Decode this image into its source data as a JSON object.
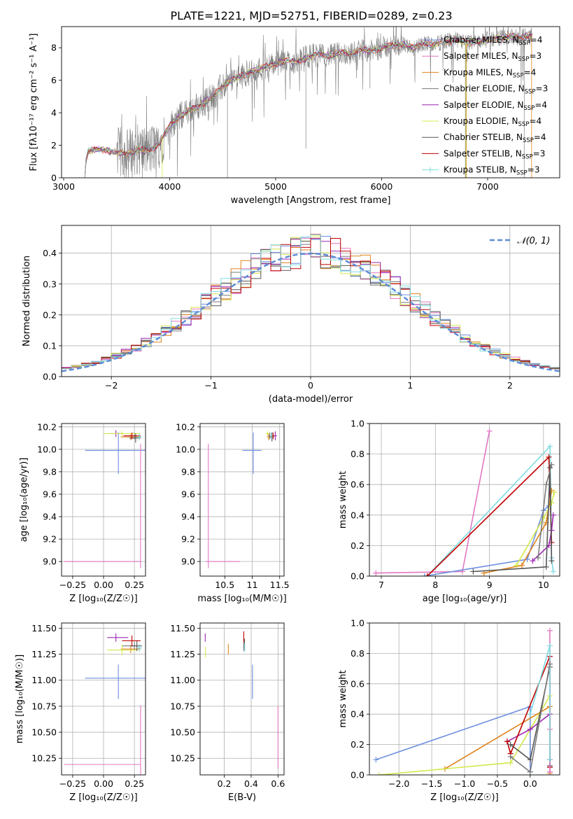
{
  "figure": {
    "title": "PLATE=1221, MJD=52751, FIBERID=0289, z=0.23"
  },
  "colors": {
    "chabrier_miles": "#6d8fe0",
    "salpeter_miles": "#e377c2",
    "kroupa_miles": "#e0821c",
    "chabrier_elodie": "#7a7a7a",
    "salpeter_elodie": "#9c27b0",
    "kroupa_elodie": "#d4e84c",
    "chabrier_stelib": "#555555",
    "salpeter_stelib": "#c00000",
    "kroupa_stelib": "#80dbe0",
    "gaussian": "#5b8bd6",
    "grid": "#b0b0b0",
    "data": "#808080"
  },
  "chart_data": [
    {
      "id": "spectrum",
      "type": "line",
      "xlabel": "wavelength [Angstrom, rest frame]",
      "ylabel": "Flux [fλ10⁻¹⁷ erg cm⁻² s⁻¹ A⁻¹]",
      "xlim": [
        2980,
        7680
      ],
      "ylim": [
        0,
        9.3
      ],
      "xticks": [
        3000,
        4000,
        5000,
        6000,
        7000
      ],
      "yticks": [
        0,
        2,
        4,
        6,
        8
      ],
      "grid": false,
      "legend_position": "top-right",
      "continuum": {
        "x": [
          3200,
          3210,
          3230,
          3300,
          3400,
          3500,
          3600,
          3700,
          3800,
          3900,
          4000,
          4100,
          4200,
          4300,
          4400,
          4500,
          4600,
          4700,
          4800,
          4900,
          5000,
          5100,
          5200,
          5300,
          5400,
          5500,
          5600,
          5700,
          5800,
          5900,
          6000,
          6100,
          6200,
          6300,
          6400,
          6500,
          6600,
          6700,
          6800,
          6900,
          7000,
          7100,
          7200,
          7300,
          7400
        ],
        "y": [
          0,
          1.0,
          1.6,
          1.75,
          1.7,
          1.55,
          1.5,
          1.75,
          1.6,
          2.1,
          3.2,
          3.8,
          4.2,
          4.5,
          5.0,
          5.6,
          6.1,
          6.3,
          6.6,
          6.8,
          7.0,
          7.2,
          7.1,
          7.4,
          7.6,
          7.5,
          7.7,
          7.6,
          7.9,
          7.8,
          8.0,
          8.1,
          8.2,
          8.0,
          8.3,
          8.2,
          8.4,
          8.5,
          8.3,
          8.4,
          8.5,
          8.6,
          8.7,
          8.6,
          8.8
        ]
      },
      "legend": [
        {
          "label": "Chabrier MILES, N",
          "sub": "SSP",
          "tail": "=4",
          "color_key": "chabrier_miles"
        },
        {
          "label": "Salpeter MILES, N",
          "sub": "SSP",
          "tail": "=3",
          "color_key": "salpeter_miles"
        },
        {
          "label": "Kroupa MILES, N",
          "sub": "SSP",
          "tail": "=4",
          "color_key": "kroupa_miles"
        },
        {
          "label": "Chabrier ELODIE, N",
          "sub": "SSP",
          "tail": "=3",
          "color_key": "chabrier_elodie"
        },
        {
          "label": "Salpeter ELODIE, N",
          "sub": "SSP",
          "tail": "=4",
          "color_key": "salpeter_elodie"
        },
        {
          "label": "Kroupa ELODIE, N",
          "sub": "SSP",
          "tail": "=4",
          "color_key": "kroupa_elodie"
        },
        {
          "label": "Chabrier STELIB, N",
          "sub": "SSP",
          "tail": "=4",
          "color_key": "chabrier_stelib"
        },
        {
          "label": "Salpeter STELIB, N",
          "sub": "SSP",
          "tail": "=3",
          "color_key": "salpeter_stelib"
        },
        {
          "label": "Kroupa STELIB, N",
          "sub": "SSP",
          "tail": "=3",
          "color_key": "kroupa_stelib"
        }
      ]
    },
    {
      "id": "residuals",
      "type": "line",
      "xlabel": "(data-model)/error",
      "ylabel": "Normed distribution",
      "xlim": [
        -2.5,
        2.5
      ],
      "ylim": [
        0,
        0.49
      ],
      "xticks": [
        -2,
        -1,
        0,
        1,
        2
      ],
      "yticks": [
        0.0,
        0.1,
        0.2,
        0.3,
        0.4
      ],
      "grid": true,
      "legend_position": "top-right",
      "gaussian_label": "𝒩(0, 1)",
      "bin_width": 0.1
    },
    {
      "id": "age_vs_Z",
      "type": "scatter",
      "xlabel": "Z [log₁₀(Z/Z☉)]",
      "ylabel": "age  [log₁₀(age/yr)]",
      "xlim": [
        -0.34,
        0.34
      ],
      "ylim": [
        8.87,
        10.23
      ],
      "xticks": [
        -0.25,
        0.0,
        0.25
      ],
      "xticklabels": [
        "−0.25",
        "0.00",
        "0.25"
      ],
      "yticks": [
        9.0,
        9.2,
        9.4,
        9.6,
        9.8,
        10.0,
        10.2
      ],
      "grid": true,
      "points": [
        {
          "x": 0.12,
          "y": 9.99,
          "xerr": [
            0.27,
            0.23
          ],
          "yerr": [
            0.21,
            0.16
          ],
          "color_key": "chabrier_miles"
        },
        {
          "x": 0.3,
          "y": 9.0,
          "xerr": [
            0.62,
            0
          ],
          "yerr": [
            0.06,
            1.05
          ],
          "color_key": "salpeter_miles"
        },
        {
          "x": 0.22,
          "y": 10.11,
          "xerr": [
            0.08,
            0.08
          ],
          "yerr": [
            0.03,
            0.03
          ],
          "color_key": "kroupa_miles"
        },
        {
          "x": 0.25,
          "y": 10.12,
          "xerr": [
            0.08,
            0.05
          ],
          "yerr": [
            0.03,
            0.03
          ],
          "color_key": "chabrier_elodie"
        },
        {
          "x": 0.1,
          "y": 10.14,
          "xerr": [
            0.05,
            0.05
          ],
          "yerr": [
            0.03,
            0.03
          ],
          "color_key": "salpeter_elodie"
        },
        {
          "x": 0.15,
          "y": 10.14,
          "xerr": [
            0.15,
            0.15
          ],
          "yerr": [
            0.02,
            0.02
          ],
          "color_key": "kroupa_elodie"
        },
        {
          "x": 0.26,
          "y": 10.1,
          "xerr": [
            0.05,
            0.04
          ],
          "yerr": [
            0.04,
            0.04
          ],
          "color_key": "chabrier_stelib"
        },
        {
          "x": 0.23,
          "y": 10.12,
          "xerr": [
            0.07,
            0.07
          ],
          "yerr": [
            0.03,
            0.03
          ],
          "color_key": "salpeter_stelib"
        },
        {
          "x": 0.29,
          "y": 10.11,
          "xerr": [
            0.02,
            0.02
          ],
          "yerr": [
            0.03,
            0.03
          ],
          "color_key": "kroupa_stelib"
        }
      ]
    },
    {
      "id": "age_vs_mass",
      "type": "scatter",
      "xlabel": "mass [log₁₀(M/M☉)]",
      "ylabel": "",
      "xlim": [
        10.05,
        11.58
      ],
      "ylim": [
        8.87,
        10.23
      ],
      "xticks": [
        10.5,
        11.0,
        11.5
      ],
      "yticks": [
        9.0,
        9.2,
        9.4,
        9.6,
        9.8,
        10.0,
        10.2
      ],
      "grid": true,
      "points": [
        {
          "x": 11.02,
          "y": 9.99,
          "xerr": [
            0.2,
            0.15
          ],
          "yerr": [
            0.21,
            0.16
          ],
          "color_key": "chabrier_miles"
        },
        {
          "x": 10.2,
          "y": 9.0,
          "xerr": [
            0.05,
            0.58
          ],
          "yerr": [
            0.06,
            1.05
          ],
          "color_key": "salpeter_miles"
        },
        {
          "x": 11.3,
          "y": 10.11,
          "xerr": [
            0.03,
            0.03
          ],
          "yerr": [
            0.03,
            0.03
          ],
          "color_key": "kroupa_miles"
        },
        {
          "x": 11.32,
          "y": 10.12,
          "xerr": [
            0.03,
            0.03
          ],
          "yerr": [
            0.03,
            0.03
          ],
          "color_key": "chabrier_elodie"
        },
        {
          "x": 11.42,
          "y": 10.12,
          "xerr": [
            0.03,
            0.03
          ],
          "yerr": [
            0.04,
            0.04
          ],
          "color_key": "salpeter_elodie"
        },
        {
          "x": 11.28,
          "y": 10.14,
          "xerr": [
            0.03,
            0.03
          ],
          "yerr": [
            0.02,
            0.02
          ],
          "color_key": "kroupa_elodie"
        },
        {
          "x": 11.36,
          "y": 10.11,
          "xerr": [
            0.03,
            0.03
          ],
          "yerr": [
            0.04,
            0.04
          ],
          "color_key": "chabrier_stelib"
        },
        {
          "x": 11.38,
          "y": 10.12,
          "xerr": [
            0.03,
            0.03
          ],
          "yerr": [
            0.03,
            0.03
          ],
          "color_key": "salpeter_stelib"
        },
        {
          "x": 11.35,
          "y": 10.12,
          "xerr": [
            0.02,
            0.02
          ],
          "yerr": [
            0.03,
            0.03
          ],
          "color_key": "kroupa_stelib"
        }
      ]
    },
    {
      "id": "weight_vs_age",
      "type": "line",
      "xlabel": "age  [log₁₀(age/yr)]",
      "ylabel": "mass weight",
      "xlim": [
        6.78,
        10.3
      ],
      "ylim": [
        0,
        1.0
      ],
      "xticks": [
        7,
        8,
        9,
        10
      ],
      "yticks": [
        0.0,
        0.2,
        0.4,
        0.6,
        0.8,
        1.0
      ],
      "grid": true,
      "series": [
        {
          "color_key": "salpeter_miles",
          "x": [
            6.9,
            8.5,
            9.0
          ],
          "y": [
            0.02,
            0.03,
            0.95
          ]
        },
        {
          "color_key": "chabrier_miles",
          "x": [
            7.8,
            9.7,
            10.0,
            10.1
          ],
          "y": [
            0.0,
            0.11,
            0.43,
            0.46
          ]
        },
        {
          "color_key": "kroupa_stelib",
          "x": [
            7.85,
            10.12,
            10.15,
            10.18
          ],
          "y": [
            0.0,
            0.85,
            0.12,
            0.03
          ]
        },
        {
          "color_key": "salpeter_stelib",
          "x": [
            7.85,
            10.1,
            10.15
          ],
          "y": [
            0.0,
            0.78,
            0.22
          ]
        },
        {
          "color_key": "kroupa_miles",
          "x": [
            8.9,
            9.6,
            10.05,
            10.15
          ],
          "y": [
            0.02,
            0.07,
            0.35,
            0.56
          ]
        },
        {
          "color_key": "salpeter_elodie",
          "x": [
            9.8,
            10.1,
            10.15,
            10.18
          ],
          "y": [
            0.1,
            0.2,
            0.3,
            0.4
          ]
        },
        {
          "color_key": "kroupa_elodie",
          "x": [
            9.5,
            10.0,
            10.15,
            10.2
          ],
          "y": [
            0.07,
            0.38,
            0.48,
            0.55
          ]
        },
        {
          "color_key": "chabrier_stelib",
          "x": [
            8.7,
            10.05,
            10.12,
            10.15
          ],
          "y": [
            0.03,
            0.06,
            0.71,
            0.1
          ]
        },
        {
          "color_key": "chabrier_elodie",
          "x": [
            9.9,
            10.05,
            10.15
          ],
          "y": [
            0.12,
            0.6,
            0.73
          ]
        }
      ]
    },
    {
      "id": "mass_vs_Z",
      "type": "scatter",
      "xlabel": "Z [log₁₀(Z/Z☉)]",
      "ylabel": "mass [log₁₀(M/M☉)]",
      "xlim": [
        -0.34,
        0.34
      ],
      "ylim": [
        10.09,
        11.55
      ],
      "xticks": [
        -0.25,
        0.0,
        0.25
      ],
      "xticklabels": [
        "−0.25",
        "0.00",
        "0.25"
      ],
      "yticks": [
        10.25,
        10.5,
        10.75,
        11.0,
        11.25,
        11.5
      ],
      "grid": true,
      "points": [
        {
          "x": 0.12,
          "y": 11.02,
          "xerr": [
            0.27,
            0.23
          ],
          "yerr": [
            0.2,
            0.13
          ],
          "color_key": "chabrier_miles"
        },
        {
          "x": 0.3,
          "y": 10.19,
          "xerr": [
            0.62,
            0
          ],
          "yerr": [
            0.1,
            0.57
          ],
          "color_key": "salpeter_miles"
        },
        {
          "x": 0.22,
          "y": 11.3,
          "xerr": [
            0.08,
            0.08
          ],
          "yerr": [
            0.04,
            0.04
          ],
          "color_key": "kroupa_miles"
        },
        {
          "x": 0.25,
          "y": 11.33,
          "xerr": [
            0.1,
            0.05
          ],
          "yerr": [
            0.04,
            0.04
          ],
          "color_key": "chabrier_elodie"
        },
        {
          "x": 0.1,
          "y": 11.41,
          "xerr": [
            0.07,
            0.1
          ],
          "yerr": [
            0.04,
            0.04
          ],
          "color_key": "salpeter_elodie"
        },
        {
          "x": 0.15,
          "y": 11.29,
          "xerr": [
            0.12,
            0.12
          ],
          "yerr": [
            0.05,
            0.05
          ],
          "color_key": "kroupa_elodie"
        },
        {
          "x": 0.27,
          "y": 11.33,
          "xerr": [
            0.05,
            0.04
          ],
          "yerr": [
            0.05,
            0.05
          ],
          "color_key": "chabrier_stelib"
        },
        {
          "x": 0.23,
          "y": 11.38,
          "xerr": [
            0.08,
            0.07
          ],
          "yerr": [
            0.05,
            0.05
          ],
          "color_key": "salpeter_stelib"
        },
        {
          "x": 0.29,
          "y": 11.31,
          "xerr": [
            0.02,
            0.02
          ],
          "yerr": [
            0.04,
            0.04
          ],
          "color_key": "kroupa_stelib"
        }
      ]
    },
    {
      "id": "mass_vs_ebv",
      "type": "scatter",
      "xlabel": "E(B-V)",
      "ylabel": "",
      "xlim": [
        0.02,
        0.645
      ],
      "ylim": [
        10.09,
        11.55
      ],
      "xticks": [
        0.2,
        0.4,
        0.6
      ],
      "yticks": [
        10.25,
        10.5,
        10.75,
        11.0,
        11.25,
        11.5
      ],
      "grid": true,
      "points": [
        {
          "x": 0.41,
          "y": 11.0,
          "yerr": [
            0.18,
            0.15
          ],
          "color_key": "chabrier_miles"
        },
        {
          "x": 0.6,
          "y": 10.45,
          "yerr": [
            0.3,
            0.3
          ],
          "color_key": "salpeter_miles"
        },
        {
          "x": 0.23,
          "y": 11.3,
          "yerr": [
            0.05,
            0.05
          ],
          "color_key": "kroupa_miles"
        },
        {
          "x": 0.345,
          "y": 11.33,
          "yerr": [
            0.05,
            0.05
          ],
          "color_key": "chabrier_elodie"
        },
        {
          "x": 0.058,
          "y": 11.41,
          "yerr": [
            0.04,
            0.04
          ],
          "color_key": "salpeter_elodie"
        },
        {
          "x": 0.06,
          "y": 11.27,
          "yerr": [
            0.05,
            0.05
          ],
          "color_key": "kroupa_elodie"
        },
        {
          "x": 0.35,
          "y": 11.35,
          "yerr": [
            0.05,
            0.05
          ],
          "color_key": "chabrier_stelib"
        },
        {
          "x": 0.345,
          "y": 11.42,
          "yerr": [
            0.05,
            0.05
          ],
          "color_key": "salpeter_stelib"
        },
        {
          "x": 0.352,
          "y": 11.31,
          "yerr": [
            0.04,
            0.04
          ],
          "color_key": "kroupa_stelib"
        }
      ]
    },
    {
      "id": "weight_vs_Z",
      "type": "line",
      "xlabel": "Z [log₁₀(Z/Z☉)]",
      "ylabel": "mass weight",
      "xlim": [
        -2.45,
        0.45
      ],
      "ylim": [
        0,
        1.0
      ],
      "xticks": [
        -2.0,
        -1.5,
        -1.0,
        -0.5,
        0.0
      ],
      "xticklabels": [
        "−2.0",
        "−1.5",
        "−1.0",
        "−0.5",
        "0.0"
      ],
      "yticks": [
        0.0,
        0.2,
        0.4,
        0.6,
        0.8,
        1.0
      ],
      "grid": true,
      "series": [
        {
          "color_key": "chabrier_miles",
          "x": [
            -2.35,
            0.0,
            0.0
          ],
          "y": [
            0.1,
            0.45,
            0.02
          ]
        },
        {
          "color_key": "kroupa_miles",
          "x": [
            -1.3,
            0.3,
            0.3
          ],
          "y": [
            0.04,
            0.45,
            0.01
          ]
        },
        {
          "color_key": "kroupa_elodie",
          "x": [
            -2.3,
            -0.3,
            0.3,
            0.3
          ],
          "y": [
            0.0,
            0.08,
            0.52,
            0.3
          ]
        },
        {
          "color_key": "salpeter_elodie",
          "x": [
            -0.35,
            0.0,
            0.3,
            0.3
          ],
          "y": [
            0.22,
            0.3,
            0.4,
            0.1
          ]
        },
        {
          "color_key": "salpeter_stelib",
          "x": [
            -0.35,
            -0.3,
            0.3,
            0.3
          ],
          "y": [
            0.22,
            0.14,
            0.78,
            0.05
          ]
        },
        {
          "color_key": "chabrier_stelib",
          "x": [
            -0.3,
            0.0,
            0.3,
            0.3
          ],
          "y": [
            0.2,
            0.1,
            0.71,
            0.06
          ]
        },
        {
          "color_key": "salpeter_miles",
          "x": [
            0.3,
            0.3,
            0.3
          ],
          "y": [
            0.95,
            0.3,
            0.02
          ]
        },
        {
          "color_key": "kroupa_stelib",
          "x": [
            0.0,
            0.3,
            0.3
          ],
          "y": [
            0.4,
            0.85,
            0.1
          ]
        },
        {
          "color_key": "chabrier_elodie",
          "x": [
            -0.3,
            0.0,
            0.3
          ],
          "y": [
            0.12,
            0.02,
            0.73
          ]
        }
      ]
    }
  ]
}
